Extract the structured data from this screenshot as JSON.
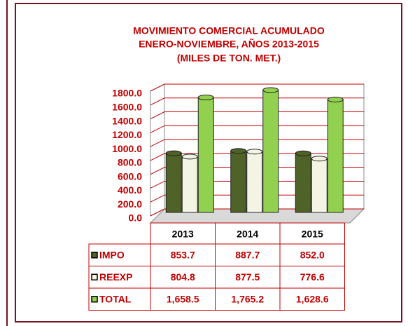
{
  "chart_data": {
    "type": "bar",
    "title": [
      "MOVIMIENTO COMERCIAL ACUMULADO",
      "ENERO-NOVIEMBRE, AÑOS 2013-2015",
      "(MILES DE TON. MET.)"
    ],
    "categories": [
      "2013",
      "2014",
      "2015"
    ],
    "series": [
      {
        "name": "IMPO",
        "color": "#4f6228",
        "values": [
          853.7,
          887.7,
          852.0
        ],
        "value_labels": [
          "853.7",
          "887.7",
          "852.0"
        ]
      },
      {
        "name": "REEXP",
        "color": "#f4f4e4",
        "values": [
          804.8,
          877.5,
          776.6
        ],
        "value_labels": [
          "804.8",
          "877.5",
          "776.6"
        ]
      },
      {
        "name": "TOTAL",
        "color": "#92d050",
        "values": [
          1658.5,
          1765.2,
          1628.6
        ],
        "value_labels": [
          "1,658.5",
          "1,765.2",
          "1,628.6"
        ]
      }
    ],
    "ylim": [
      0,
      1800
    ],
    "yticks": [
      {
        "value": 0,
        "label": "0.0"
      },
      {
        "value": 200,
        "label": "200.0"
      },
      {
        "value": 400,
        "label": "400.0"
      },
      {
        "value": 600,
        "label": "600.0"
      },
      {
        "value": 800,
        "label": "800.0"
      },
      {
        "value": 1000,
        "label": "1000.0"
      },
      {
        "value": 1200,
        "label": "1200.0"
      },
      {
        "value": 1400,
        "label": "1400.0"
      },
      {
        "value": 1600,
        "label": "1600.0"
      },
      {
        "value": 1800,
        "label": "1800.0"
      }
    ],
    "grid": true,
    "grid_color": "#c00000"
  }
}
